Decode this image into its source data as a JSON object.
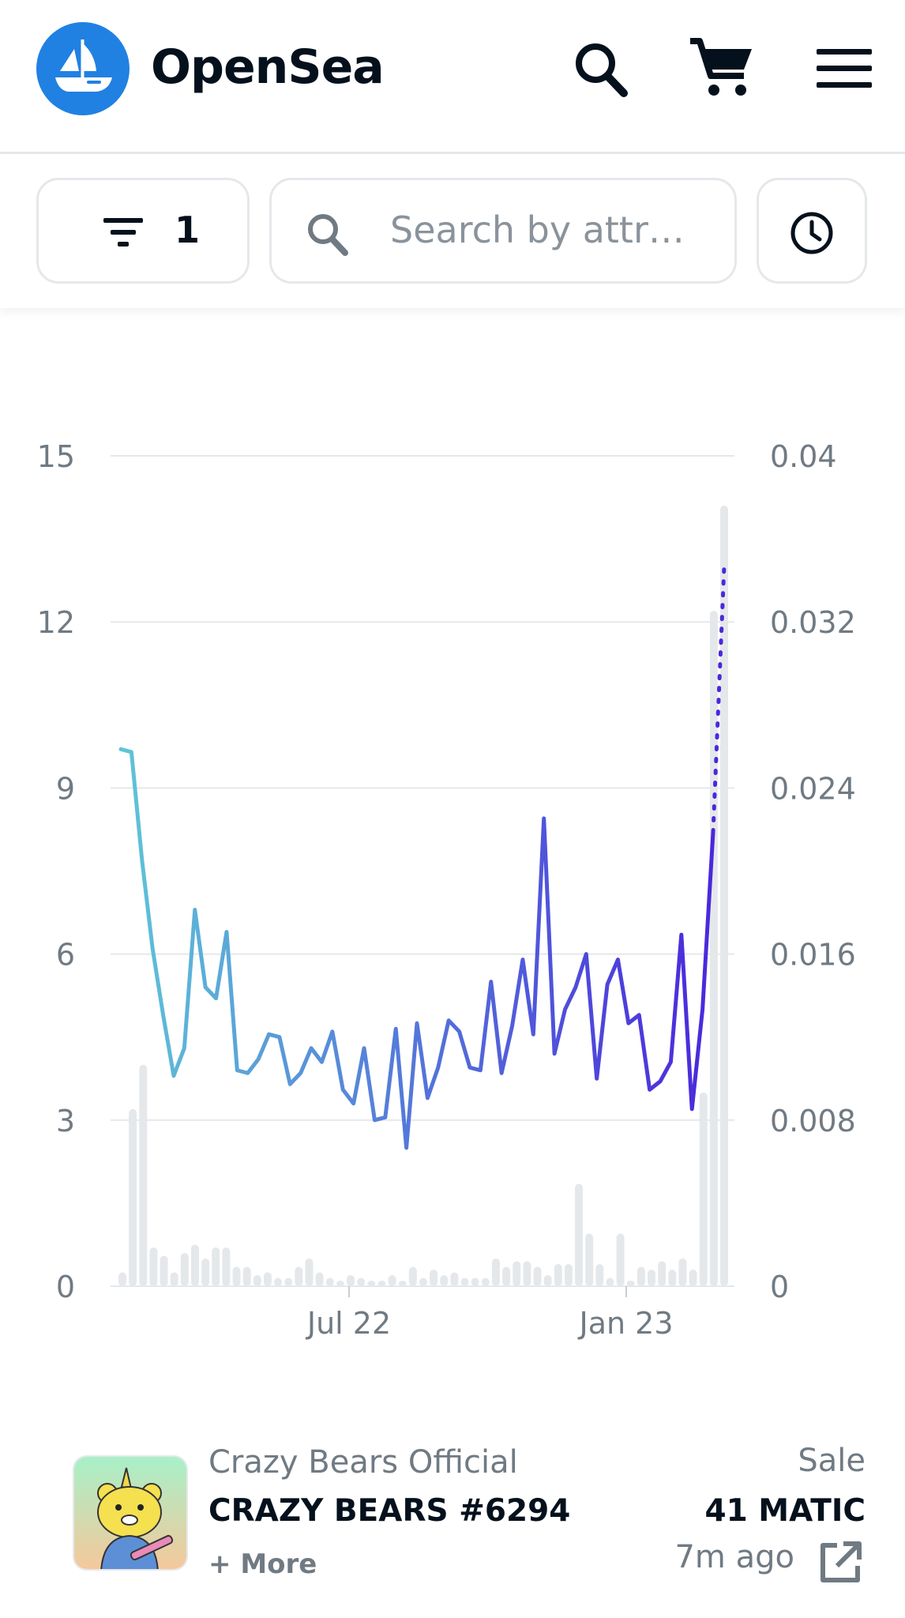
{
  "header": {
    "app_name": "OpenSea",
    "icons": [
      "opensea-logo-icon",
      "search-icon",
      "cart-icon",
      "menu-icon"
    ]
  },
  "toolbar": {
    "filter_count": "1",
    "search_placeholder": "Search by attr…",
    "icons": [
      "filter-icon",
      "search-icon",
      "clock-icon"
    ]
  },
  "chart_data": {
    "type": "line",
    "title": "",
    "xlabel": "",
    "ylabel": "",
    "x_ticks": [
      "Jul 22",
      "Jan 23"
    ],
    "y_left_ticks": [
      "0",
      "3",
      "6",
      "9",
      "12",
      "15"
    ],
    "y_right_ticks": [
      "0",
      "0.008",
      "0.016",
      "0.024",
      "0.032",
      "0.04"
    ],
    "ylim_left": [
      0,
      15
    ],
    "ylim_right": [
      0,
      0.04
    ],
    "grid": true,
    "line_color_start": "#5ec4d8",
    "line_color_end": "#4a28dc",
    "bar_color": "#e5e8eb",
    "series": [
      {
        "kind": "line",
        "axis": "left",
        "values": [
          9.7,
          9.65,
          7.7,
          6.1,
          4.9,
          3.8,
          4.3,
          6.8,
          5.4,
          5.2,
          6.4,
          3.9,
          3.85,
          4.1,
          4.55,
          4.5,
          3.65,
          3.85,
          4.3,
          4.05,
          4.6,
          3.55,
          3.3,
          4.3,
          3.0,
          3.05,
          4.65,
          2.5,
          4.75,
          3.4,
          3.95,
          4.8,
          4.6,
          3.95,
          3.9,
          5.5,
          3.85,
          4.7,
          5.9,
          4.55,
          8.45,
          4.2,
          5.0,
          5.4,
          6.0,
          3.75,
          5.45,
          5.9,
          4.75,
          4.9,
          3.55,
          3.7,
          4.05,
          6.35,
          3.2,
          5.0,
          8.2
        ],
        "projection_to": 13.0
      },
      {
        "kind": "bar",
        "axis": "left",
        "values": [
          0.25,
          3.2,
          4.0,
          0.7,
          0.55,
          0.25,
          0.6,
          0.75,
          0.5,
          0.7,
          0.7,
          0.35,
          0.35,
          0.2,
          0.25,
          0.15,
          0.15,
          0.35,
          0.5,
          0.25,
          0.15,
          0.1,
          0.2,
          0.15,
          0.1,
          0.1,
          0.2,
          0.1,
          0.35,
          0.15,
          0.3,
          0.2,
          0.25,
          0.15,
          0.15,
          0.15,
          0.5,
          0.35,
          0.45,
          0.45,
          0.35,
          0.2,
          0.4,
          0.4,
          1.85,
          0.95,
          0.4,
          0.15,
          0.95,
          0.1,
          0.35,
          0.3,
          0.45,
          0.3,
          0.5,
          0.3,
          3.5,
          12.2,
          14.1
        ]
      }
    ]
  },
  "activity": {
    "collection": "Crazy Bears Official",
    "name": "CRAZY BEARS #6294",
    "more": "+ More",
    "event": "Sale",
    "price": "41 MATIC",
    "time": "7m ago",
    "icons": [
      "nft-thumbnail",
      "external-link-icon"
    ]
  }
}
